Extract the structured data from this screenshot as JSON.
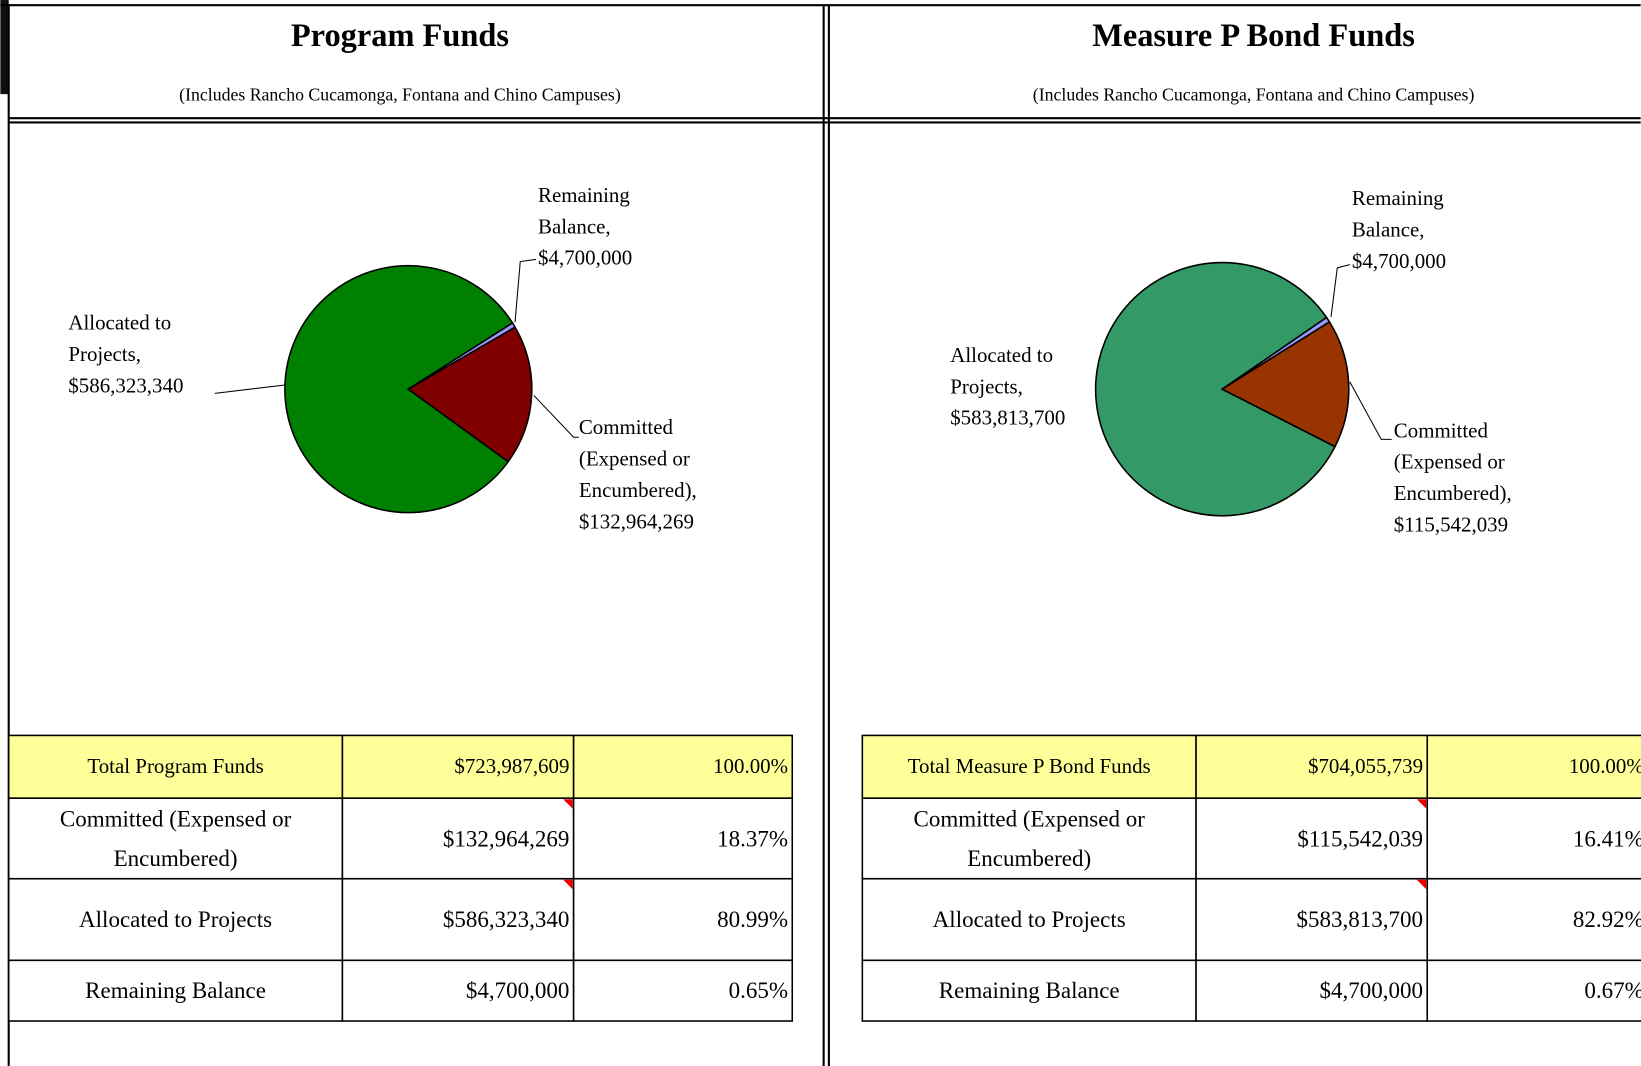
{
  "chart_data": [
    {
      "type": "pie",
      "title": "Program Funds",
      "subtitle": "(Includes Rancho Cucamonga, Fontana and Chino Campuses)",
      "categories": [
        "Allocated to Projects,",
        "Remaining Balance,",
        "Committed (Expensed or Encumbered),"
      ],
      "values": [
        586323340,
        4700000,
        132964269
      ],
      "value_labels": [
        "$586,323,340",
        "$4,700,000",
        "$132,964,269"
      ],
      "colors": [
        "#008000",
        "#9999ff",
        "#800000"
      ]
    },
    {
      "type": "pie",
      "title": "Measure P Bond Funds",
      "subtitle": "(Includes Rancho Cucamonga, Fontana and Chino Campuses)",
      "categories": [
        "Allocated to Projects,",
        "Remaining Balance,",
        "Committed (Expensed or Encumbered),"
      ],
      "values": [
        583813700,
        4700000,
        115542039
      ],
      "value_labels": [
        "$583,813,700",
        "$4,700,000",
        "$115,542,039"
      ],
      "colors": [
        "#339966",
        "#9999ff",
        "#993300"
      ]
    }
  ],
  "tables": [
    {
      "rows": [
        [
          "Total Program Funds",
          "$723,987,609",
          "100.00%"
        ],
        [
          "Committed (Expensed or Encumbered)",
          "$132,964,269",
          "18.37%"
        ],
        [
          "Allocated to Projects",
          "$586,323,340",
          "80.99%"
        ],
        [
          "Remaining Balance",
          "$4,700,000",
          "0.65%"
        ]
      ]
    },
    {
      "rows": [
        [
          "Total Measure P Bond Funds",
          "$704,055,739",
          "100.00%"
        ],
        [
          "Committed (Expensed or Encumbered)",
          "$115,542,039",
          "16.41%"
        ],
        [
          "Allocated to Projects",
          "$583,813,700",
          "82.92%"
        ],
        [
          "Remaining Balance",
          "$4,700,000",
          "0.67%"
        ]
      ]
    }
  ]
}
